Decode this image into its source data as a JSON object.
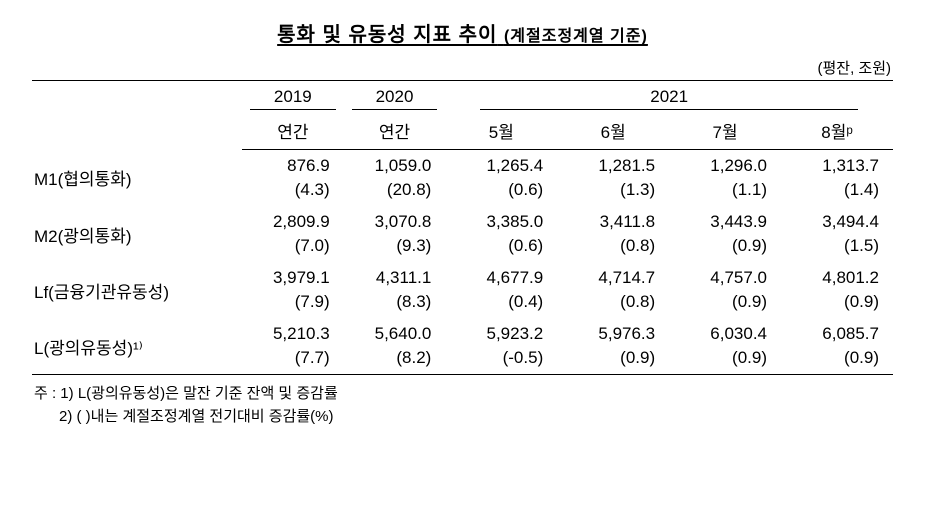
{
  "title_main": "통화 및 유동성 지표 추이",
  "title_sub": "(계절조정계열 기준)",
  "unit_label": "(평잔, 조원)",
  "header_years": {
    "y2019": "2019",
    "y2020": "2020",
    "y2021": "2021"
  },
  "header_periods": {
    "p1": "연간",
    "p2": "연간",
    "p3": "5월",
    "p4": "6월",
    "p5": "7월",
    "p6": "8월ᵖ"
  },
  "rows": [
    {
      "label": "M1(협의통화)",
      "values": [
        "876.9",
        "1,059.0",
        "1,265.4",
        "1,281.5",
        "1,296.0",
        "1,313.7"
      ],
      "pct": [
        "(4.3)",
        "(20.8)",
        "(0.6)",
        "(1.3)",
        "(1.1)",
        "(1.4)"
      ]
    },
    {
      "label": "M2(광의통화)",
      "values": [
        "2,809.9",
        "3,070.8",
        "3,385.0",
        "3,411.8",
        "3,443.9",
        "3,494.4"
      ],
      "pct": [
        "(7.0)",
        "(9.3)",
        "(0.6)",
        "(0.8)",
        "(0.9)",
        "(1.5)"
      ]
    },
    {
      "label": "Lf(금융기관유동성)",
      "values": [
        "3,979.1",
        "4,311.1",
        "4,677.9",
        "4,714.7",
        "4,757.0",
        "4,801.2"
      ],
      "pct": [
        "(7.9)",
        "(8.3)",
        "(0.4)",
        "(0.8)",
        "(0.9)",
        "(0.9)"
      ]
    },
    {
      "label": "L(광의유동성)¹⁾",
      "values": [
        "5,210.3",
        "5,640.0",
        "5,923.2",
        "5,976.3",
        "6,030.4",
        "6,085.7"
      ],
      "pct": [
        "(7.7)",
        "(8.2)",
        "(-0.5)",
        "(0.9)",
        "(0.9)",
        "(0.9)"
      ]
    }
  ],
  "footnotes": {
    "prefix1": "주 : 1) ",
    "line1": "L(광의유동성)은 말잔 기준 잔액 및 증감률",
    "prefix2": "      2) ",
    "line2": "(   )내는 계절조정계열 전기대비 증감률(%)"
  },
  "style": {
    "text_color": "#000000",
    "background": "#ffffff",
    "border_color": "#000000",
    "title_fontsize": 20,
    "body_fontsize": 17,
    "footnote_fontsize": 15
  }
}
